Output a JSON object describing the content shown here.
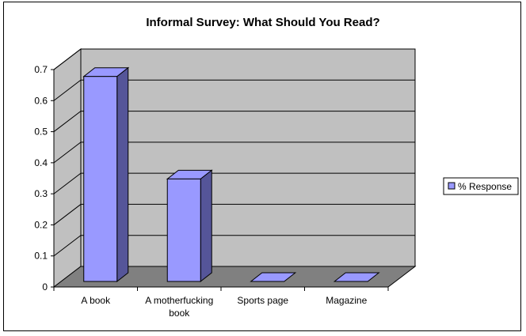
{
  "chart_data": {
    "type": "bar",
    "title": "Informal Survey: What Should You Read?",
    "categories": [
      [
        "A book"
      ],
      [
        "A motherfucking",
        "book"
      ],
      [
        "Sports page"
      ],
      [
        "Magazine"
      ]
    ],
    "series": [
      {
        "name": "% Response",
        "values": [
          0.66,
          0.33,
          0,
          0
        ],
        "color": "#9999FF"
      }
    ],
    "y_ticks": [
      "0",
      "0.1",
      "0.2",
      "0.3",
      "0.4",
      "0.5",
      "0.6",
      "0.7"
    ],
    "ylim": [
      0,
      0.7
    ],
    "grid": true,
    "legend_position": "right",
    "style": "3d-column",
    "wall_color": "#C0C0C0",
    "floor_color": "#808080"
  }
}
